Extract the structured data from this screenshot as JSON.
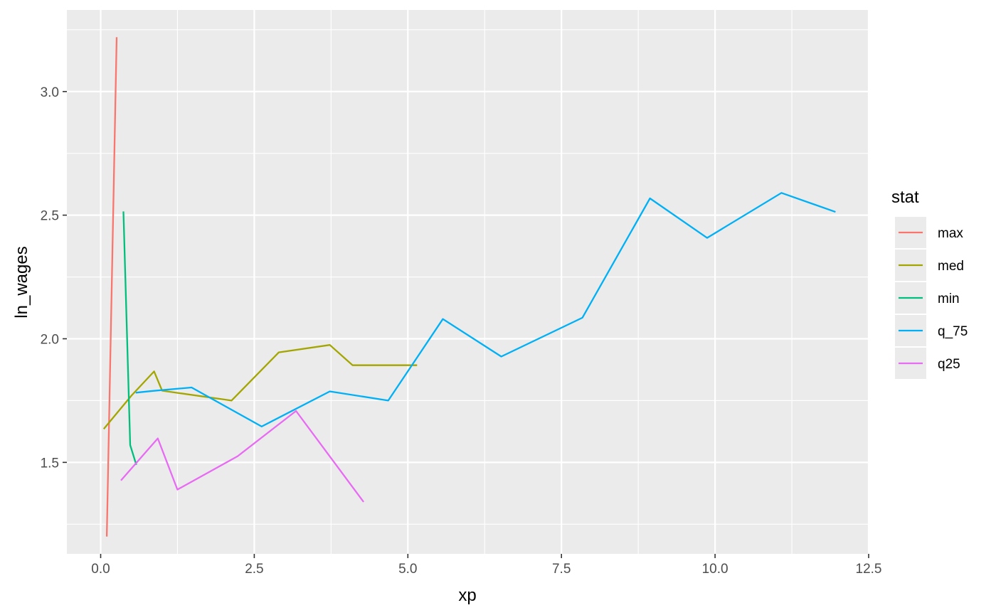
{
  "chart_data": {
    "type": "line",
    "title": "",
    "xlabel": "xp",
    "ylabel": "ln_wages",
    "xlim": [
      -0.55,
      12.5
    ],
    "ylim": [
      1.13,
      3.33
    ],
    "xticks": [
      0.0,
      2.5,
      5.0,
      7.5,
      10.0,
      12.5
    ],
    "xtick_labels": [
      "0.0",
      "2.5",
      "5.0",
      "7.5",
      "10.0",
      "12.5"
    ],
    "yticks": [
      1.5,
      2.0,
      2.5,
      3.0
    ],
    "ytick_labels": [
      "1.5",
      "2.0",
      "2.5",
      "3.0"
    ],
    "grid": true,
    "legend": {
      "title": "stat",
      "position": "right"
    },
    "series": [
      {
        "name": "max",
        "color": "#F8766D",
        "x": [
          0.1,
          0.26
        ],
        "y": [
          1.2,
          3.22
        ]
      },
      {
        "name": "med",
        "color": "#A3A500",
        "x": [
          0.05,
          0.5,
          0.87,
          1.0,
          2.13,
          2.9,
          3.73,
          4.1,
          5.15
        ],
        "y": [
          1.635,
          1.77,
          1.868,
          1.79,
          1.75,
          1.945,
          1.975,
          1.893,
          1.893
        ]
      },
      {
        "name": "min",
        "color": "#00BF7D",
        "x": [
          0.37,
          0.48,
          0.58
        ],
        "y": [
          2.515,
          1.57,
          1.49
        ]
      },
      {
        "name": "q_75",
        "color": "#00B0F6",
        "x": [
          0.57,
          0.85,
          1.48,
          2.62,
          3.73,
          4.68,
          5.57,
          6.52,
          7.84,
          8.94,
          9.87,
          11.08,
          11.96
        ],
        "y": [
          1.782,
          1.789,
          1.803,
          1.645,
          1.787,
          1.75,
          2.08,
          1.928,
          2.085,
          2.568,
          2.408,
          2.59,
          2.513
        ]
      },
      {
        "name": "q25",
        "color": "#E76BF3",
        "x": [
          0.33,
          0.93,
          1.25,
          2.23,
          3.18,
          4.28
        ],
        "y": [
          1.427,
          1.597,
          1.39,
          1.525,
          1.708,
          1.34
        ]
      }
    ]
  }
}
